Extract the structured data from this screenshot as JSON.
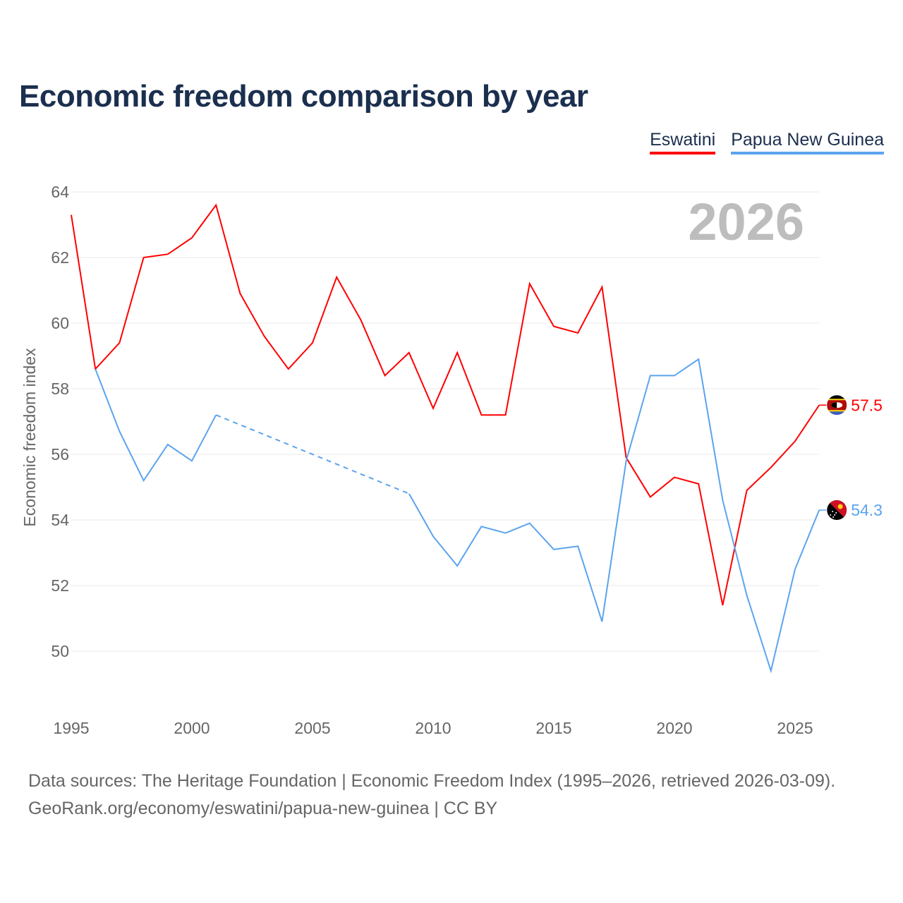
{
  "title": "Economic freedom comparison by year",
  "footer": {
    "line1": "Data sources: The Heritage Foundation | Economic Freedom Index (1995–2026, retrieved 2026-03-09).",
    "line2": "GeoRank.org/economy/eswatini/papua-new-guinea | CC BY"
  },
  "chart_data": {
    "type": "line",
    "title": "Economic freedom comparison by year",
    "ylabel": "Economic freedom index",
    "xlabel": "",
    "year_watermark": "2026",
    "xlim": [
      1995,
      2026
    ],
    "ylim": [
      48,
      64
    ],
    "yticks": [
      50,
      52,
      54,
      56,
      58,
      60,
      62,
      64
    ],
    "xticks": [
      1995,
      2000,
      2005,
      2010,
      2015,
      2020,
      2025
    ],
    "grid": true,
    "legend_position": "top-right",
    "x": [
      1995,
      1996,
      1997,
      1998,
      1999,
      2000,
      2001,
      2002,
      2003,
      2004,
      2005,
      2006,
      2007,
      2008,
      2009,
      2010,
      2011,
      2012,
      2013,
      2014,
      2015,
      2016,
      2017,
      2018,
      2019,
      2020,
      2021,
      2022,
      2023,
      2024,
      2025,
      2026
    ],
    "series": [
      {
        "name": "Eswatini",
        "color": "#ff0000",
        "end_label": "57.5",
        "flag": "eswatini-flag-icon",
        "values": [
          63.3,
          58.6,
          59.4,
          62.0,
          62.1,
          62.6,
          63.6,
          60.9,
          59.6,
          58.6,
          59.4,
          61.4,
          60.1,
          58.4,
          59.1,
          57.4,
          59.1,
          57.2,
          57.2,
          61.2,
          59.9,
          59.7,
          61.1,
          55.9,
          54.7,
          55.3,
          55.1,
          51.4,
          54.9,
          55.6,
          56.4,
          57.5
        ]
      },
      {
        "name": "Papua New Guinea",
        "color": "#5ba4ee",
        "end_label": "54.3",
        "flag": "papua-new-guinea-flag-icon",
        "values": [
          null,
          58.6,
          56.7,
          55.2,
          56.3,
          55.8,
          57.2,
          null,
          null,
          null,
          null,
          null,
          null,
          null,
          54.8,
          53.5,
          52.6,
          53.8,
          53.6,
          53.9,
          53.1,
          53.2,
          50.9,
          55.8,
          58.4,
          58.4,
          58.9,
          54.6,
          51.7,
          49.4,
          52.5,
          54.3
        ]
      }
    ]
  }
}
